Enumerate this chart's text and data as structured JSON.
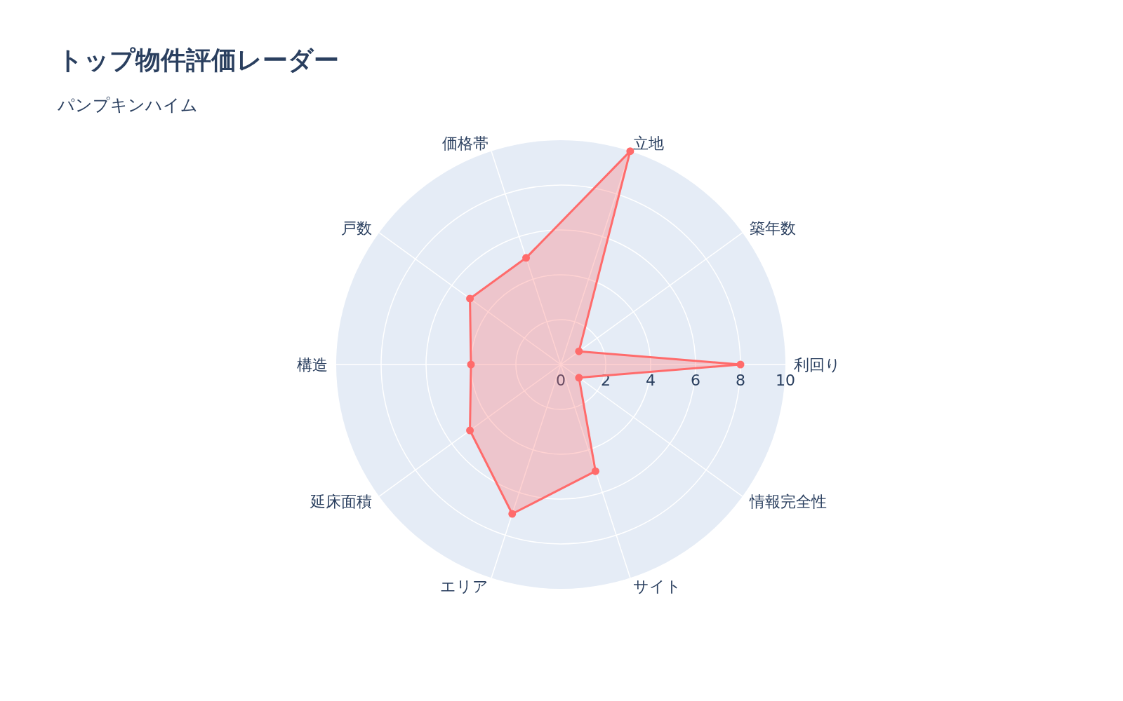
{
  "chart_data": {
    "type": "radar",
    "title": "トップ物件評価レーダー",
    "subtitle": "パンプキンハイム",
    "categories": [
      "立地",
      "築年数",
      "利回り",
      "情報完全性",
      "サイト",
      "エリア",
      "延床面積",
      "構造",
      "戸数",
      "価格帯"
    ],
    "series": [
      {
        "color": "#ff6b6b",
        "values": [
          10,
          1,
          8,
          1,
          5,
          7,
          5,
          4,
          5,
          5
        ]
      }
    ],
    "ylim": [
      0,
      10
    ],
    "yticks": [
      0,
      2,
      4,
      6,
      8,
      10
    ],
    "grid": true,
    "marker": "circle"
  }
}
